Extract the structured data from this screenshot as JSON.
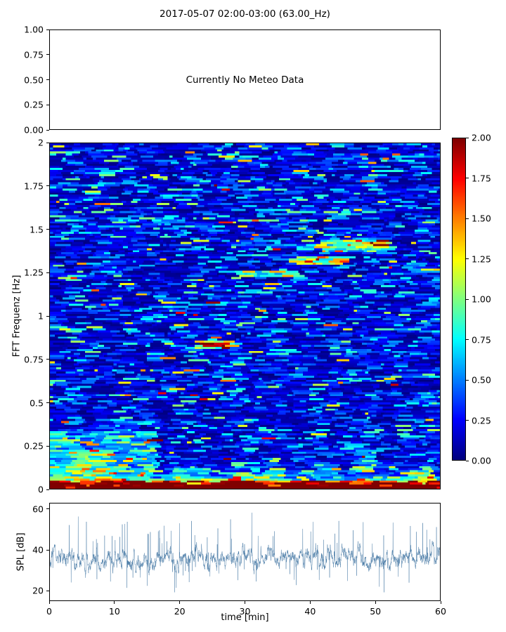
{
  "title": "2017-05-07 02:00-03:00 (63.00_Hz)",
  "colors": {
    "background": "#ffffff",
    "axis": "#000000",
    "spl_line": "#4a7ba6",
    "colormap_name": "jet"
  },
  "chart_data": [
    {
      "id": "meteo",
      "type": "line",
      "annotation": "Currently No Meteo Data",
      "ylim": [
        0,
        1
      ],
      "ytick_labels": [
        "1.00",
        "0.75",
        "0.50",
        "0.25",
        "0.00"
      ],
      "series": [],
      "grid": false
    },
    {
      "id": "spectrogram",
      "type": "heatmap",
      "ylabel": "FFT Frequenz [Hz]",
      "xlim": [
        0,
        60
      ],
      "ylim": [
        0,
        2
      ],
      "yticks": [
        0,
        0.25,
        0.5,
        0.75,
        1,
        1.25,
        1.5,
        1.75,
        2
      ],
      "ytick_labels": [
        "0",
        "0.25",
        "0.5",
        "0.75",
        "1",
        "1.25",
        "1.5",
        "1.75",
        "2"
      ],
      "clim": [
        0,
        2
      ],
      "colormap": "jet",
      "colorbar_tick_labels_top_to_bottom": [
        "2.00",
        "1.75",
        "1.50",
        "1.25",
        "1.00",
        "0.75",
        "0.50",
        "0.25",
        "0.00"
      ],
      "grid_size": {
        "cols": 245,
        "rows": 168
      },
      "noise": {
        "seed": 42,
        "mean": 0.27,
        "segment_min": 2,
        "segment_extra": 9
      },
      "low_freq_boost": {
        "amplitude": 1.7,
        "decay_hz": 0.035
      },
      "regions": [
        {
          "t": [
            0,
            60
          ],
          "f": [
            0,
            0.04
          ],
          "boost": 1.25,
          "note": "continuous red high-energy band at lowest frequencies"
        },
        {
          "t": [
            0,
            16.5
          ],
          "f": [
            0.04,
            0.33
          ],
          "boost": 0.55,
          "note": "elevated broadband energy during first ~16 min below 0.33 Hz"
        },
        {
          "t": [
            3.5,
            9.5
          ],
          "f": [
            0.08,
            0.22
          ],
          "boost": 0.4,
          "note": "yellow-green patch"
        },
        {
          "t": [
            19,
            24.5
          ],
          "f": [
            0.04,
            0.11
          ],
          "boost": 0.45,
          "note": "green streaks ~20 min"
        },
        {
          "t": [
            28.5,
            31.5
          ],
          "f": [
            0.02,
            0.09
          ],
          "boost": 0.85,
          "note": "strong low-frequency burst ~30 min"
        },
        {
          "t": [
            33,
            36
          ],
          "f": [
            0.04,
            0.1
          ],
          "boost": 0.4,
          "note": "green streaks"
        },
        {
          "t": [
            40.5,
            44.5
          ],
          "f": [
            0.06,
            0.15
          ],
          "boost": 0.45,
          "note": "green streaks"
        },
        {
          "t": [
            46.5,
            50.5
          ],
          "f": [
            0.09,
            0.22
          ],
          "boost": 0.5,
          "note": "green-yellow streaks"
        },
        {
          "t": [
            56.5,
            59.7
          ],
          "f": [
            0.03,
            0.13
          ],
          "boost": 0.75,
          "note": "orange streaks near end"
        },
        {
          "t": [
            22.5,
            28.2
          ],
          "f": [
            0.805,
            0.855
          ],
          "boost": 1.4,
          "note": "strong narrowband tone ~0.83 Hz at 23-28 min"
        },
        {
          "t": [
            24,
            26.8
          ],
          "f": [
            0.818,
            0.845
          ],
          "boost": 0.55,
          "note": "dark-red core of 0.83 Hz tone"
        },
        {
          "t": [
            29,
            38.5
          ],
          "f": [
            1.225,
            1.265
          ],
          "boost": 0.8,
          "note": "tone ~1.24 Hz at 29-38 min"
        },
        {
          "t": [
            38,
            45.5
          ],
          "f": [
            1.3,
            1.348
          ],
          "boost": 1.45,
          "note": "strong tone ~1.33 Hz at 38-45 min"
        },
        {
          "t": [
            41.5,
            53
          ],
          "f": [
            1.372,
            1.448
          ],
          "boost": 0.85,
          "note": "rising tone ~1.41 Hz at 42-53 min"
        },
        {
          "t": [
            46,
            52
          ],
          "f": [
            1.395,
            1.45
          ],
          "boost": 0.5,
          "note": "brighter section of 1.41 Hz tone"
        },
        {
          "t": [
            55,
            58.2
          ],
          "f": [
            1.245,
            1.315
          ],
          "boost": 0.45,
          "note": "cyan-green patch ~1.28 Hz"
        },
        {
          "t": [
            58.2,
            59.8
          ],
          "f": [
            1.05,
            1.105
          ],
          "boost": 0.6,
          "note": "green spot ~1.07 Hz near end"
        },
        {
          "t": [
            56,
            60
          ],
          "f": [
            0.47,
            0.56
          ],
          "boost": 0.45,
          "note": "green-cyan patch ~0.5 Hz near end"
        },
        {
          "t": [
            10.5,
            13
          ],
          "f": [
            1.5,
            1.58
          ],
          "boost": 0.4,
          "note": "cyan streak ~1.54 Hz"
        }
      ]
    },
    {
      "id": "spl",
      "type": "line",
      "xlabel": "time [min]",
      "ylabel": "SPL [dB]",
      "xlim": [
        0,
        60
      ],
      "ylim": [
        15,
        63
      ],
      "xticks": [
        0,
        10,
        20,
        30,
        40,
        50,
        60
      ],
      "yticks": [
        20,
        40,
        60
      ],
      "line_color": "#4a7ba6",
      "series": [
        {
          "name": "SPL",
          "seed": 7,
          "n_points": 3600,
          "mean_db": 35.5,
          "typical_range": [
            30,
            45
          ],
          "spike_max_db": 58,
          "min_db": 20,
          "description": "dense broadband SPL trace fluctuating around 33-42 dB with frequent spikes to 45-58 dB and occasional dips near 20 dB"
        }
      ]
    }
  ]
}
